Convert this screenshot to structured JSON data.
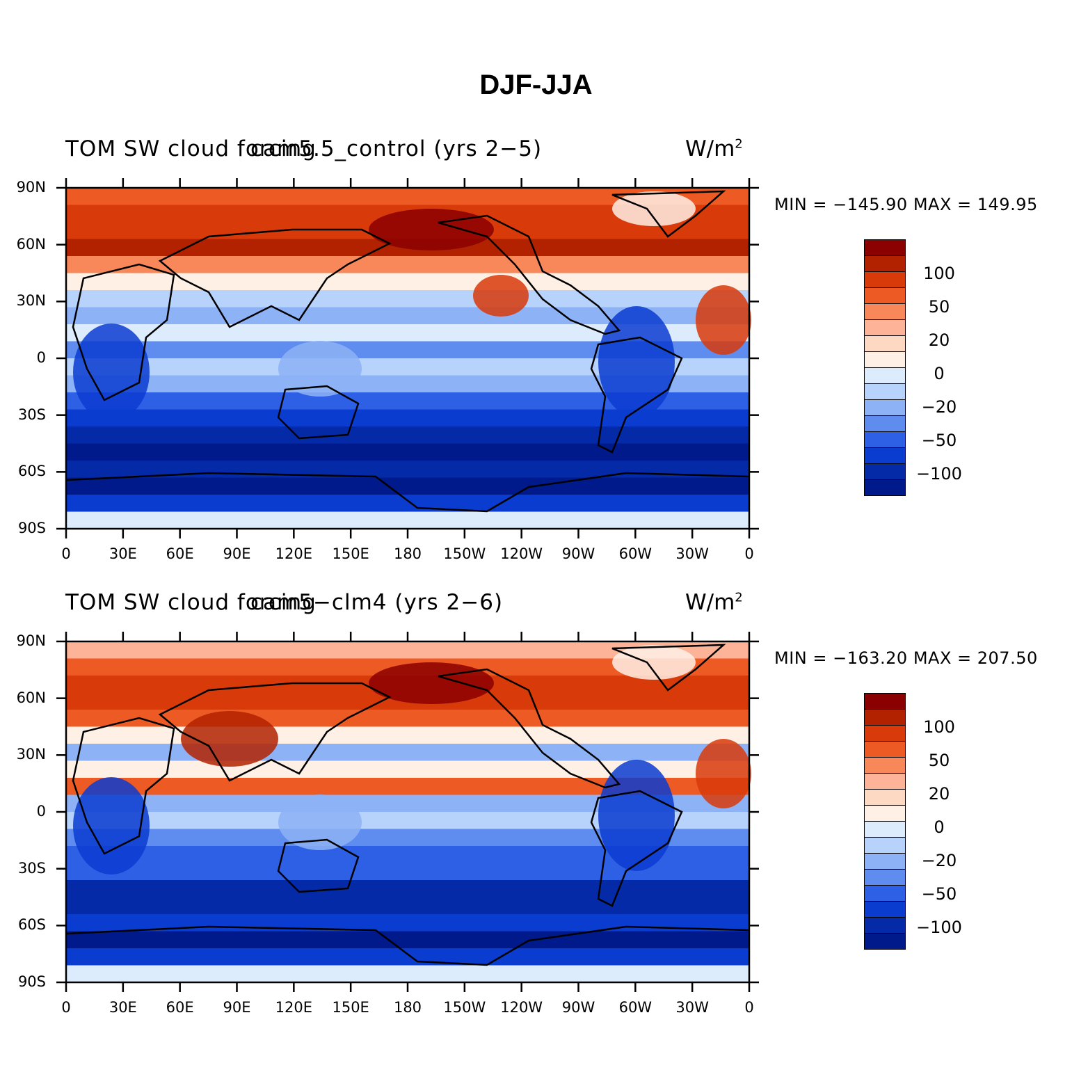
{
  "figure": {
    "title": "DJF-JJA"
  },
  "panels": [
    {
      "left_title": "TOM SW cloud forcing",
      "center_title": "cam5.5_control (yrs 2−5)",
      "units": "W/m",
      "units_sup": "2",
      "minmax": "MIN = −145.90  MAX = 149.95"
    },
    {
      "left_title": "TOM SW cloud forcing",
      "center_title": "cam5−clm4 (yrs 2−6)",
      "units": "W/m",
      "units_sup": "2",
      "minmax": "MIN = −163.20  MAX = 207.50"
    }
  ],
  "axes": {
    "lat_ticks": [
      "90N",
      "60N",
      "30N",
      "0",
      "30S",
      "60S",
      "90S"
    ],
    "lon_ticks": [
      "0",
      "30E",
      "60E",
      "90E",
      "120E",
      "150E",
      "180",
      "150W",
      "120W",
      "90W",
      "60W",
      "30W",
      "0"
    ]
  },
  "colorbar": {
    "colors": [
      "#8b0000",
      "#b22200",
      "#d83a0a",
      "#ee5a24",
      "#f8875a",
      "#fcb397",
      "#fdd9c4",
      "#fff0e6",
      "#dcecfc",
      "#b7d2fb",
      "#8db2f5",
      "#5f8cef",
      "#2e60e6",
      "#0a3cd0",
      "#042aa8",
      "#001a8c"
    ],
    "labels": [
      "100",
      "50",
      "20",
      "0",
      "−20",
      "−50",
      "−100"
    ]
  }
}
